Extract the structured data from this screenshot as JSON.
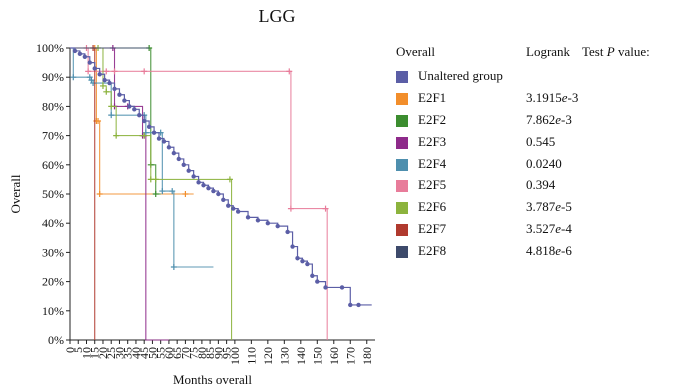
{
  "chart_data": {
    "type": "line",
    "subtype": "kaplan-meier-step",
    "title": "LGG",
    "xlabel": "Months overall",
    "ylabel": "Overall",
    "xlim": [
      0,
      185
    ],
    "ylim": [
      0,
      100
    ],
    "x_ticks": [
      0,
      5,
      10,
      15,
      20,
      25,
      30,
      35,
      40,
      45,
      50,
      55,
      60,
      65,
      70,
      75,
      80,
      85,
      90,
      95,
      100,
      110,
      120,
      130,
      140,
      150,
      160,
      170,
      180
    ],
    "x_tick_labels": [
      "0",
      "5",
      "10",
      "15",
      "20",
      "25",
      "30",
      "35",
      "40",
      "45",
      "50",
      "55",
      "60",
      "65",
      "70",
      "75",
      "80",
      "85",
      "90",
      "95",
      "100",
      "110",
      "120",
      "130",
      "140",
      "150",
      "160",
      "170",
      "180"
    ],
    "y_ticks": [
      0,
      10,
      20,
      30,
      40,
      50,
      60,
      70,
      80,
      90,
      100
    ],
    "y_tick_labels": [
      "0%",
      "10%",
      "20%",
      "30%",
      "40%",
      "50%",
      "60%",
      "70%",
      "80%",
      "90%",
      "100%"
    ],
    "legend": {
      "header_col1": "Overall",
      "header_col2": "Logrank",
      "header_col3_prefix": "Test ",
      "header_col3_italic": "P",
      "header_col3_suffix": " value:"
    },
    "series": [
      {
        "name": "Unaltered group",
        "color": "#5b5ea6",
        "pval_base": "",
        "pval_exp": "",
        "x": [
          0,
          3,
          6,
          9,
          12,
          15,
          18,
          21,
          24,
          27,
          30,
          33,
          36,
          39,
          42,
          45,
          48,
          51,
          54,
          57,
          60,
          63,
          66,
          69,
          72,
          75,
          78,
          81,
          84,
          87,
          90,
          93,
          96,
          99,
          102,
          108,
          114,
          120,
          126,
          132,
          135,
          138,
          141,
          144,
          147,
          150,
          155,
          165,
          170,
          175,
          183
        ],
        "y": [
          100,
          99,
          98,
          97,
          95,
          93,
          91,
          89,
          88,
          86,
          84,
          82,
          80,
          79,
          77,
          75,
          73,
          71,
          69,
          68,
          66,
          64,
          62,
          60,
          58,
          56,
          54,
          53,
          52,
          51,
          50,
          48,
          46,
          45,
          44,
          42,
          41,
          40,
          39,
          37,
          32,
          28,
          27,
          26,
          22,
          20,
          18,
          18,
          12,
          12,
          12
        ]
      },
      {
        "name": "E2F1",
        "color": "#f28e2b",
        "pval_base": "3.1915",
        "pval_exp": "-3",
        "x": [
          0,
          15,
          16,
          17,
          18,
          70,
          75
        ],
        "y": [
          100,
          100,
          75,
          75,
          50,
          50,
          50
        ]
      },
      {
        "name": "E2F2",
        "color": "#3c8d2f",
        "pval_base": "7.862",
        "pval_exp": "-3",
        "x": [
          0,
          48,
          49,
          52,
          55
        ],
        "y": [
          100,
          100,
          60,
          50,
          50
        ]
      },
      {
        "name": "E2F3",
        "color": "#8e2a8a",
        "pval_base": "0.545",
        "pval_exp": "",
        "x": [
          0,
          26,
          27,
          35,
          44,
          45,
          46,
          54,
          55,
          60
        ],
        "y": [
          100,
          100,
          80,
          80,
          70,
          70,
          0,
          0,
          0,
          0
        ]
      },
      {
        "name": "E2F4",
        "color": "#4e8fae",
        "pval_base": "0.0240",
        "pval_exp": "",
        "x": [
          0,
          2,
          12,
          13,
          14,
          25,
          45,
          46,
          55,
          56,
          62,
          63,
          87
        ],
        "y": [
          100,
          90,
          90,
          89,
          88,
          77,
          77,
          71,
          71,
          51,
          51,
          25,
          25
        ]
      },
      {
        "name": "E2F5",
        "color": "#e87c9a",
        "pval_base": "0.394",
        "pval_exp": "",
        "x": [
          0,
          10,
          11,
          22,
          27,
          45,
          133,
          134,
          155,
          156
        ],
        "y": [
          100,
          100,
          92,
          92,
          92,
          92,
          92,
          45,
          45,
          0
        ]
      },
      {
        "name": "E2F6",
        "color": "#8cb33d",
        "pval_base": "3.787",
        "pval_exp": "-5",
        "x": [
          0,
          17,
          20,
          22,
          25,
          28,
          45,
          49,
          52,
          97,
          98
        ],
        "y": [
          100,
          100,
          87,
          85,
          80,
          70,
          70,
          55,
          55,
          55,
          0
        ]
      },
      {
        "name": "E2F7",
        "color": "#b03a2e",
        "pval_base": "3.527",
        "pval_exp": "-4",
        "x": [
          0,
          14,
          15
        ],
        "y": [
          100,
          100,
          0
        ]
      },
      {
        "name": "E2F8",
        "color": "#3d4a6b",
        "pval_base": "4.818",
        "pval_exp": "-6",
        "x": [
          0,
          48
        ],
        "y": [
          100,
          100
        ]
      }
    ],
    "grid": false,
    "legend_placement": "right"
  }
}
